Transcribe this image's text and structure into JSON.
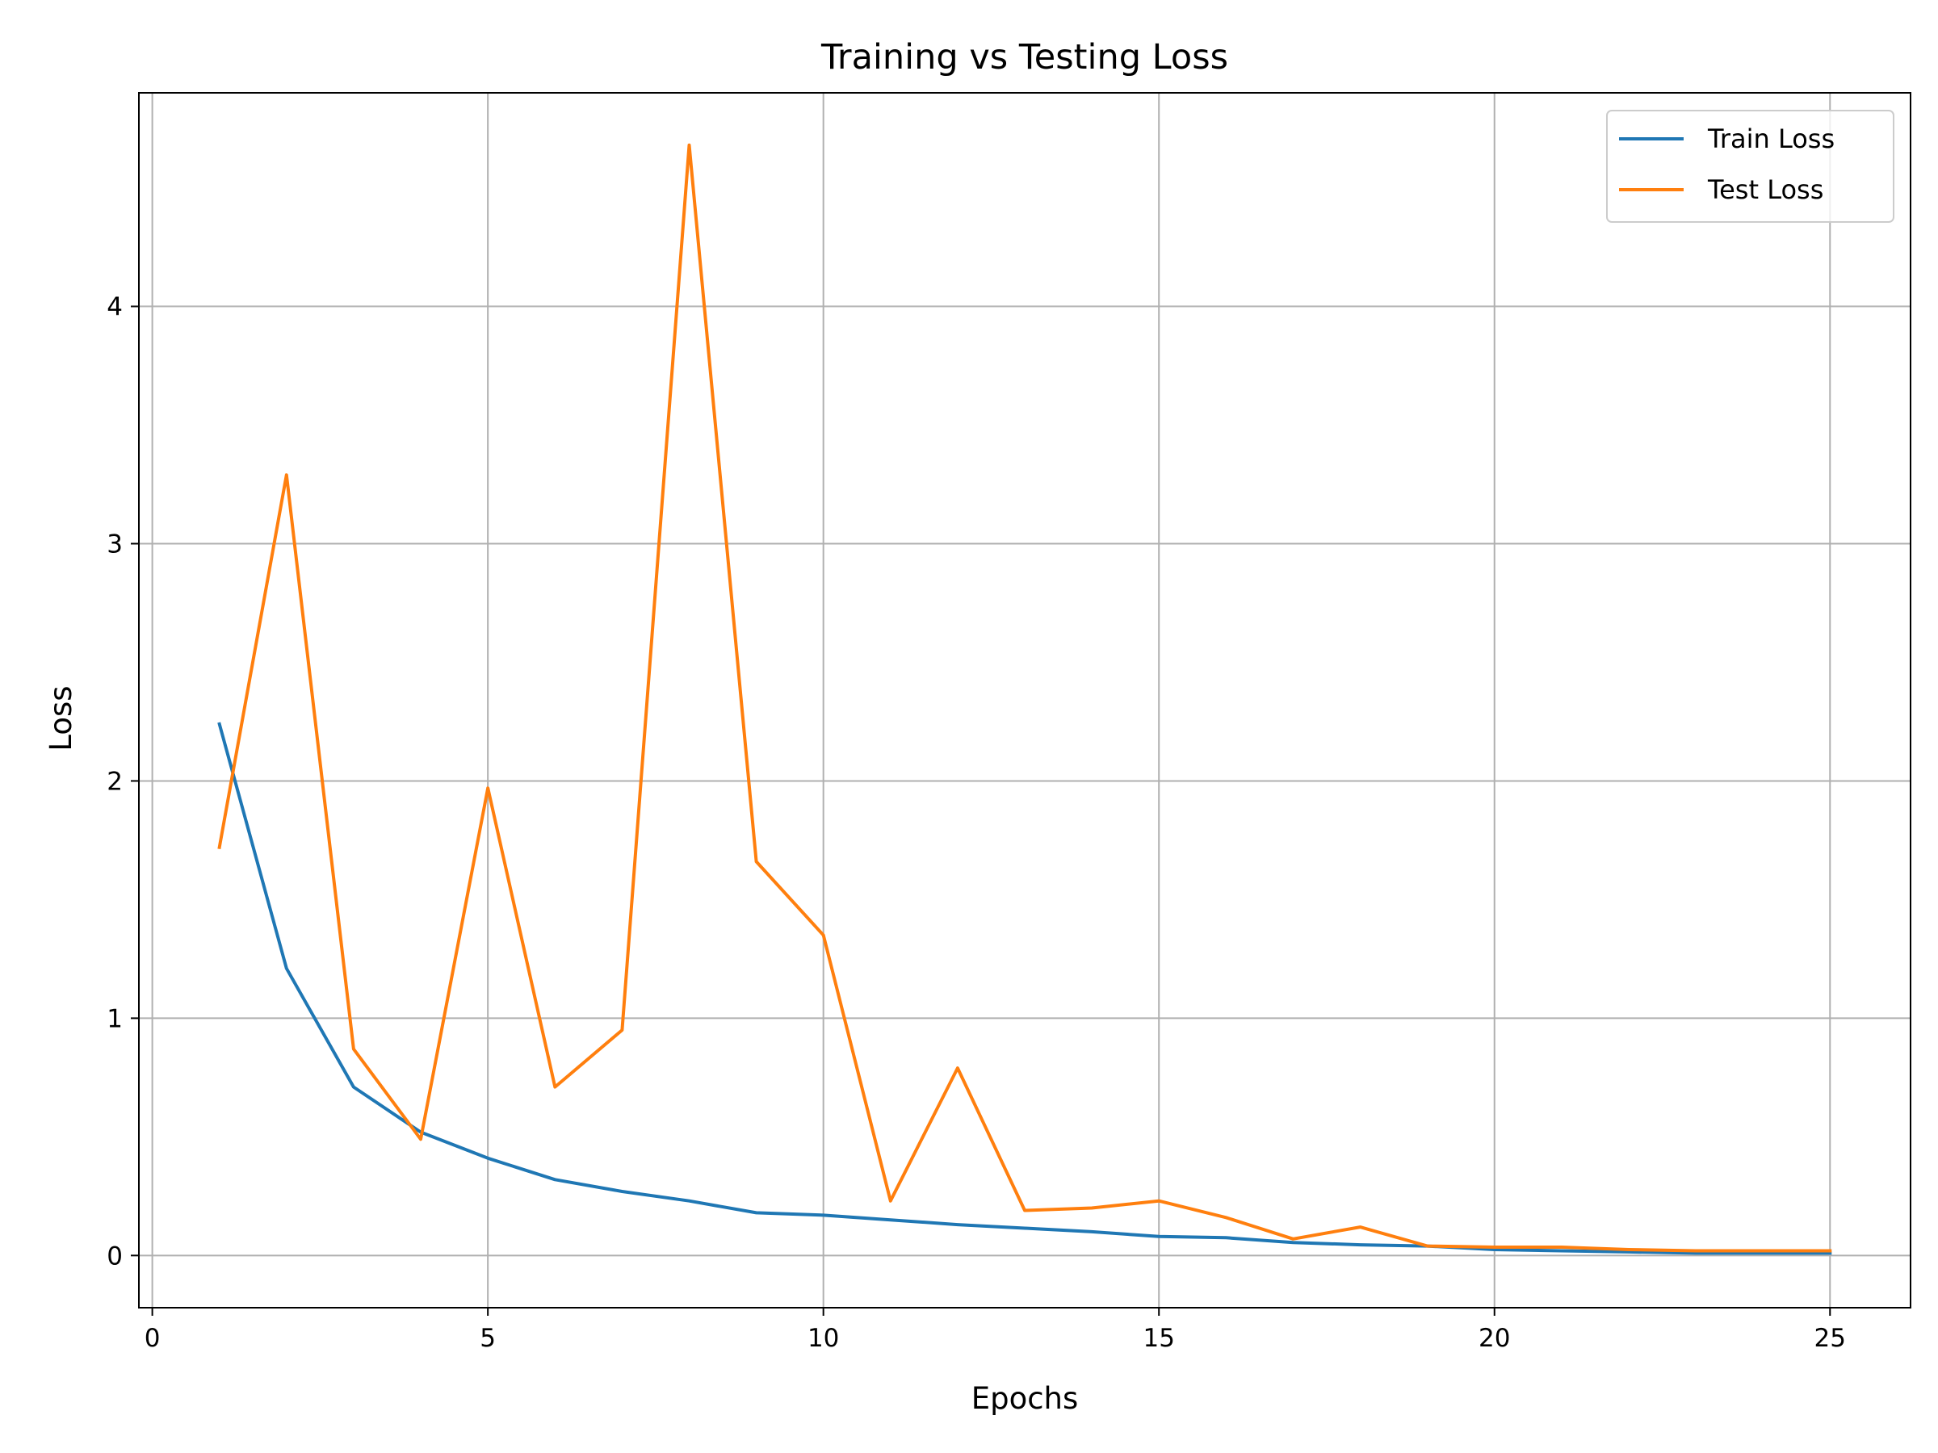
{
  "chart_data": {
    "type": "line",
    "title": "Training vs Testing Loss",
    "xlabel": "Epochs",
    "ylabel": "Loss",
    "xlim": [
      -0.2,
      26.2
    ],
    "ylim": [
      -0.22,
      4.9
    ],
    "xticks": [
      0,
      5,
      10,
      15,
      20,
      25
    ],
    "yticks": [
      0,
      1,
      2,
      3,
      4
    ],
    "grid": true,
    "legend_position": "top-right",
    "x": [
      1,
      2,
      3,
      4,
      5,
      6,
      7,
      8,
      9,
      10,
      11,
      12,
      13,
      14,
      15,
      16,
      17,
      18,
      19,
      20,
      21,
      22,
      23,
      24,
      25
    ],
    "series": [
      {
        "name": "Train Loss",
        "color": "#1f77b4",
        "values": [
          2.24,
          1.21,
          0.71,
          0.52,
          0.41,
          0.32,
          0.27,
          0.23,
          0.18,
          0.17,
          0.15,
          0.13,
          0.115,
          0.1,
          0.08,
          0.075,
          0.055,
          0.045,
          0.04,
          0.025,
          0.02,
          0.015,
          0.01,
          0.01,
          0.01
        ]
      },
      {
        "name": "Test Loss",
        "color": "#ff7f0e",
        "values": [
          1.72,
          3.29,
          0.87,
          0.49,
          1.97,
          0.71,
          0.95,
          4.68,
          1.66,
          1.35,
          0.23,
          0.79,
          0.19,
          0.2,
          0.23,
          0.16,
          0.07,
          0.12,
          0.04,
          0.035,
          0.035,
          0.025,
          0.02,
          0.02,
          0.02
        ]
      }
    ]
  }
}
